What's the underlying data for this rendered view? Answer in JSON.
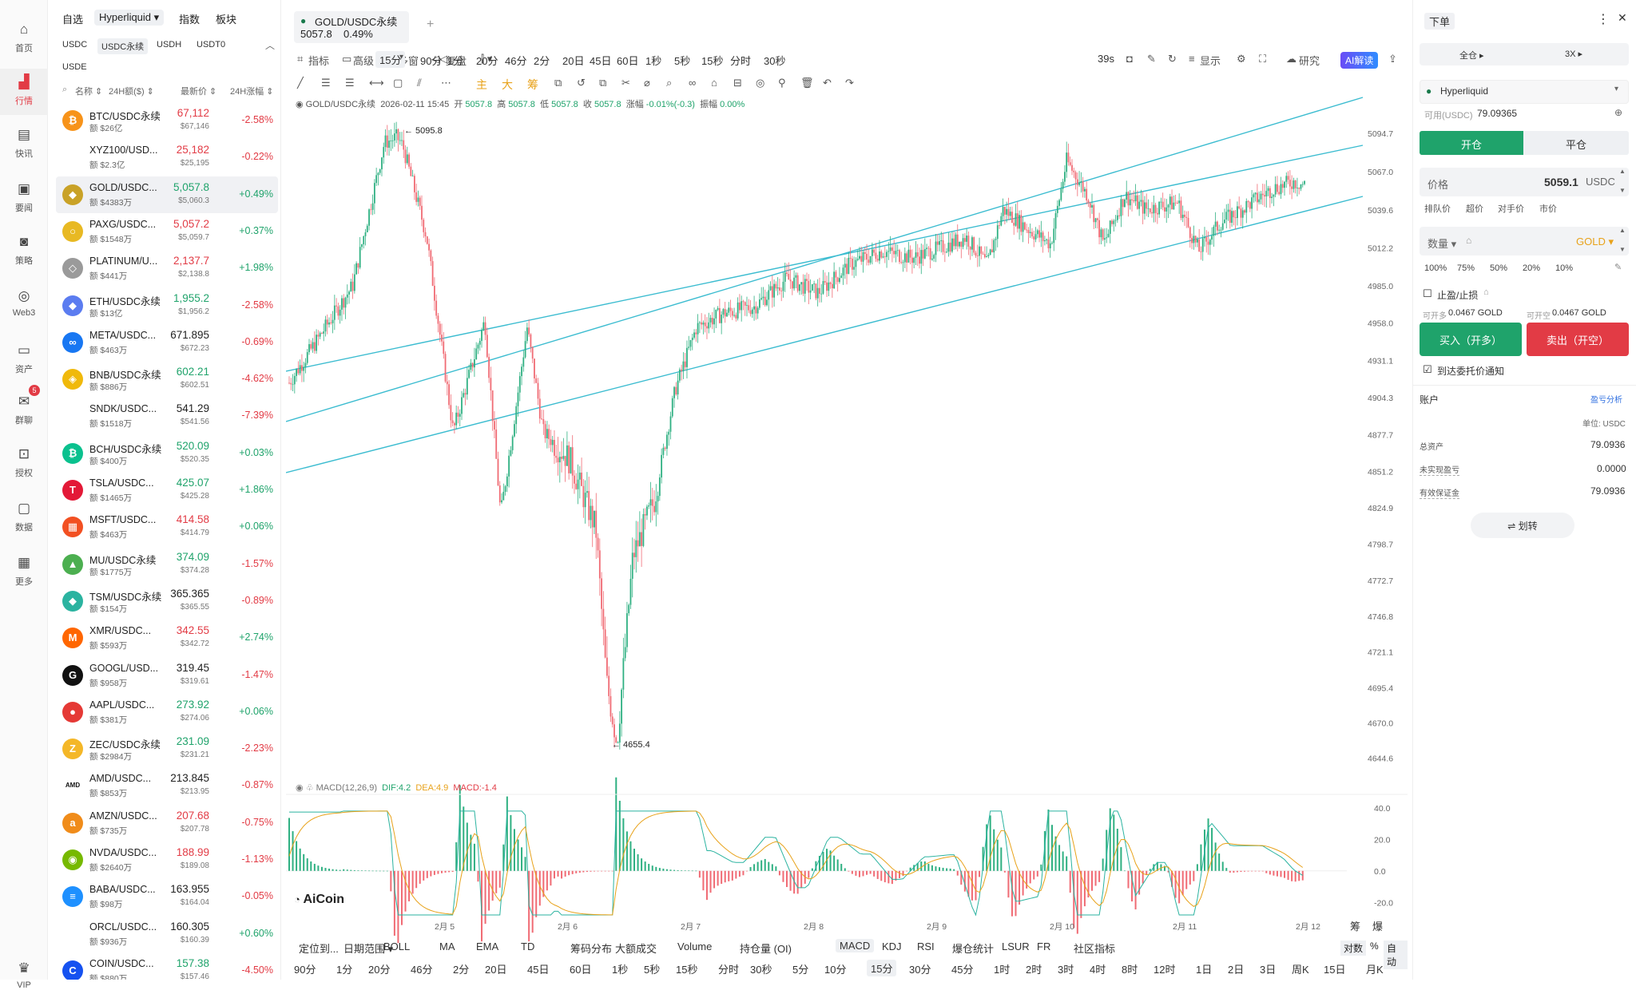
{
  "nav": [
    {
      "label": "首页",
      "icon": "home-icon",
      "glyph": "⌂"
    },
    {
      "label": "行情",
      "icon": "market-chart-icon",
      "glyph": "▟",
      "active": true
    },
    {
      "label": "快讯",
      "icon": "news-flash-icon",
      "glyph": "▤"
    },
    {
      "label": "要闻",
      "icon": "headline-news-icon",
      "glyph": "▣"
    },
    {
      "label": "策略",
      "icon": "robot-strategy-icon",
      "glyph": "◙"
    },
    {
      "label": "Web3",
      "icon": "web3-icon",
      "glyph": "◎"
    },
    {
      "label": "资产",
      "icon": "wallet-icon",
      "glyph": "▭"
    },
    {
      "label": "群聊",
      "icon": "chat-icon",
      "glyph": "✉",
      "badge": "5"
    },
    {
      "label": "授权",
      "icon": "authorize-icon",
      "glyph": "⊡"
    },
    {
      "label": "数据",
      "icon": "data-monitor-icon",
      "glyph": "▢"
    },
    {
      "label": "更多",
      "icon": "more-grid-icon",
      "glyph": "▦"
    },
    {
      "label": "VIP",
      "icon": "vip-crown-icon",
      "glyph": "♛"
    }
  ],
  "market": {
    "tabs": [
      "自选",
      "Hyperliquid ▾",
      "指数",
      "板块"
    ],
    "subtabs": [
      "USDC",
      "USDC永续",
      "USDH",
      "USDT0"
    ],
    "subtabs2": "USDE",
    "headers": {
      "name": "名称 ⇕",
      "vol": "24H额($) ⇕",
      "price": "最新价 ⇕",
      "chg": "24H涨幅 ⇕"
    },
    "rows": [
      {
        "name": "BTC/USDC永续",
        "vol": "额 $26亿",
        "price": "67,112",
        "sub": "$67,146",
        "chg": "-2.58%",
        "dir": "dn",
        "color": "#f7931a",
        "glyph": "₿"
      },
      {
        "name": "XYZ100/USD...",
        "vol": "额 $2.3亿",
        "price": "25,182",
        "sub": "$25,195",
        "chg": "-0.22%",
        "dir": "dn",
        "color": "",
        "glyph": ""
      },
      {
        "name": "GOLD/USDC...",
        "vol": "额 $4383万",
        "price": "5,057.8",
        "sub": "$5,060.3",
        "chg": "+0.49%",
        "dir": "up",
        "color": "#c9a227",
        "glyph": "◆",
        "sel": true
      },
      {
        "name": "PAXG/USDC...",
        "vol": "额 $1548万",
        "price": "5,057.2",
        "sub": "$5,059.7",
        "chg": "+0.37%",
        "dir": "dn",
        "color": "#e8b923",
        "glyph": "○"
      },
      {
        "name": "PLATINUM/U...",
        "vol": "额 $441万",
        "price": "2,137.7",
        "sub": "$2,138.8",
        "chg": "+1.98%",
        "dir": "dn",
        "color": "#9a9a9a",
        "glyph": "◇"
      },
      {
        "name": "ETH/USDC永续",
        "vol": "额 $13亿",
        "price": "1,955.2",
        "sub": "$1,956.2",
        "chg": "-2.58%",
        "dir": "up",
        "color": "#5b7cf0",
        "glyph": "◆"
      },
      {
        "name": "META/USDC...",
        "vol": "额 $463万",
        "price": "671.895",
        "sub": "$672.23",
        "chg": "-0.69%",
        "dir": "blk",
        "color": "#1877f2",
        "glyph": "∞"
      },
      {
        "name": "BNB/USDC永续",
        "vol": "额 $886万",
        "price": "602.21",
        "sub": "$602.51",
        "chg": "-4.62%",
        "dir": "up",
        "color": "#f0b90b",
        "glyph": "◈"
      },
      {
        "name": "SNDK/USDC...",
        "vol": "额 $1518万",
        "price": "541.29",
        "sub": "$541.56",
        "chg": "-7.39%",
        "dir": "blk",
        "color": "",
        "glyph": ""
      },
      {
        "name": "BCH/USDC永续",
        "vol": "额 $400万",
        "price": "520.09",
        "sub": "$520.35",
        "chg": "+0.03%",
        "dir": "up",
        "color": "#0ac18e",
        "glyph": "₿"
      },
      {
        "name": "TSLA/USDC...",
        "vol": "额 $1465万",
        "price": "425.07",
        "sub": "$425.28",
        "chg": "+1.86%",
        "dir": "up",
        "color": "#e31937",
        "glyph": "T"
      },
      {
        "name": "MSFT/USDC...",
        "vol": "额 $463万",
        "price": "414.58",
        "sub": "$414.79",
        "chg": "+0.06%",
        "dir": "dn",
        "color": "#f25022",
        "glyph": "▦"
      },
      {
        "name": "MU/USDC永续",
        "vol": "额 $1775万",
        "price": "374.09",
        "sub": "$374.28",
        "chg": "-1.57%",
        "dir": "up",
        "color": "#4caf50",
        "glyph": "▲"
      },
      {
        "name": "TSM/USDC永续",
        "vol": "额 $154万",
        "price": "365.365",
        "sub": "$365.55",
        "chg": "-0.89%",
        "dir": "blk",
        "color": "#2bb3a0",
        "glyph": "◆"
      },
      {
        "name": "XMR/USDC...",
        "vol": "额 $593万",
        "price": "342.55",
        "sub": "$342.72",
        "chg": "+2.74%",
        "dir": "dn",
        "color": "#ff6600",
        "glyph": "M"
      },
      {
        "name": "GOOGL/USD...",
        "vol": "额 $958万",
        "price": "319.45",
        "sub": "$319.61",
        "chg": "-1.47%",
        "dir": "blk",
        "color": "#111",
        "glyph": "G"
      },
      {
        "name": "AAPL/USDC...",
        "vol": "额 $381万",
        "price": "273.92",
        "sub": "$274.06",
        "chg": "+0.06%",
        "dir": "up",
        "color": "#e53935",
        "glyph": "●"
      },
      {
        "name": "ZEC/USDC永续",
        "vol": "额 $2984万",
        "price": "231.09",
        "sub": "$231.21",
        "chg": "-2.23%",
        "dir": "up",
        "color": "#f4b728",
        "glyph": "Z"
      },
      {
        "name": "AMD/USDC...",
        "vol": "额 $853万",
        "price": "213.845",
        "sub": "$213.95",
        "chg": "-0.87%",
        "dir": "blk",
        "color": "",
        "glyph": "AMD"
      },
      {
        "name": "AMZN/USDC...",
        "vol": "额 $735万",
        "price": "207.68",
        "sub": "$207.78",
        "chg": "-0.75%",
        "dir": "dn",
        "color": "#f08c1a",
        "glyph": "a"
      },
      {
        "name": "NVDA/USDC...",
        "vol": "额 $2640万",
        "price": "188.99",
        "sub": "$189.08",
        "chg": "-1.13%",
        "dir": "dn",
        "color": "#76b900",
        "glyph": "◉"
      },
      {
        "name": "BABA/USDC...",
        "vol": "额 $98万",
        "price": "163.955",
        "sub": "$164.04",
        "chg": "-0.05%",
        "dir": "blk",
        "color": "#1e90ff",
        "glyph": "≡"
      },
      {
        "name": "ORCL/USDC...",
        "vol": "额 $936万",
        "price": "160.305",
        "sub": "$160.39",
        "chg": "+0.60%",
        "dir": "blk",
        "color": "",
        "glyph": ""
      },
      {
        "name": "COIN/USDC...",
        "vol": "额 $880万",
        "price": "157.38",
        "sub": "$157.46",
        "chg": "-4.50%",
        "dir": "up",
        "color": "#1652f0",
        "glyph": "C"
      }
    ]
  },
  "chart": {
    "tab_title": "GOLD/USDC永续",
    "tab_price": "5057.8",
    "tab_chg": "0.49%",
    "add_tab": "+",
    "toolbar": [
      "指标",
      "高级",
      "多窗",
      "复盘"
    ],
    "timeframes": [
      "15分",
      "90分",
      "1分",
      "20分",
      "46分",
      "2分",
      "20日",
      "45日",
      "60日",
      "1秒",
      "5秒",
      "15秒",
      "分时",
      "30秒"
    ],
    "countdown": "39s",
    "right_tools": [
      "显示",
      "研究"
    ],
    "ai_label": "AI解读",
    "mode_labels": [
      "主",
      "大",
      "筹"
    ],
    "ohlc": {
      "pair": "GOLD/USDC永续",
      "date": "2026-02-11 15:45",
      "open_l": "开",
      "open": "5057.8",
      "high_l": "高",
      "high": "5057.8",
      "low_l": "低",
      "low": "5057.8",
      "close_l": "收",
      "close": "5057.8",
      "chg_l": "涨幅",
      "chg": "-0.01%(-0.3)",
      "amp_l": "振幅",
      "amp": "0.00%"
    },
    "high_marker": "← 5095.8",
    "low_marker": "← 4655.4",
    "macd": {
      "label": "MACD(12,26,9)",
      "dif": "DIF:4.2",
      "dea": "DEA:4.9",
      "macd": "MACD:-1.4"
    },
    "logo": "AiCoin",
    "dates": [
      "2月 5",
      "2月 6",
      "2月 7",
      "2月 8",
      "2月 9",
      "2月 10",
      "2月 11",
      "2月 12"
    ],
    "bottom_tabs": [
      "定位到...",
      "日期范围 ▾",
      "BOLL",
      "MA",
      "EMA",
      "TD",
      "筹码分布",
      "大额成交",
      "Volume",
      "持仓量 (OI)",
      "MACD",
      "KDJ",
      "RSI",
      "爆仓统计",
      "LSUR",
      "FR",
      "社区指标"
    ],
    "bottom_right": [
      "对数",
      "%",
      "自动"
    ],
    "bottom_tfs": [
      "90分",
      "1分",
      "20分",
      "46分",
      "2分",
      "20日",
      "45日",
      "60日",
      "1秒",
      "5秒",
      "15秒",
      "分时",
      "30秒",
      "5分",
      "10分",
      "15分",
      "30分",
      "45分",
      "1时",
      "2时",
      "3时",
      "4时",
      "8时",
      "12时",
      "1日",
      "2日",
      "3日",
      "周K",
      "15日",
      "月K"
    ],
    "extra_tabs": [
      "筹",
      "爆"
    ]
  },
  "chart_data": {
    "type": "candlestick",
    "x_range": [
      "2026-02-04",
      "2026-02-12"
    ],
    "y_ticks": [
      5094.7,
      5067.0,
      5039.6,
      5012.2,
      4985.0,
      4958.0,
      4931.1,
      4904.3,
      4877.7,
      4851.2,
      4824.9,
      4798.7,
      4772.7,
      4746.8,
      4721.1,
      4695.4,
      4670.0,
      4644.6
    ],
    "ylim": [
      4630,
      5112
    ],
    "high": 5095.8,
    "low": 4655.4,
    "last": 5057.8,
    "path": [
      [
        0,
        4915
      ],
      [
        0.06,
        4985
      ],
      [
        0.09,
        5088
      ],
      [
        0.105,
        5093
      ],
      [
        0.13,
        5020
      ],
      [
        0.155,
        4880
      ],
      [
        0.185,
        4960
      ],
      [
        0.2,
        4820
      ],
      [
        0.225,
        4955
      ],
      [
        0.24,
        4880
      ],
      [
        0.265,
        4860
      ],
      [
        0.29,
        4810
      ],
      [
        0.3,
        4700
      ],
      [
        0.31,
        4655.4
      ],
      [
        0.325,
        4790
      ],
      [
        0.345,
        4830
      ],
      [
        0.365,
        4910
      ],
      [
        0.385,
        4955
      ],
      [
        0.41,
        4965
      ],
      [
        0.44,
        4970
      ],
      [
        0.47,
        4990
      ],
      [
        0.5,
        4980
      ],
      [
        0.53,
        5000
      ],
      [
        0.56,
        5010
      ],
      [
        0.59,
        5005
      ],
      [
        0.615,
        5012
      ],
      [
        0.64,
        5020
      ],
      [
        0.66,
        5000
      ],
      [
        0.675,
        5040
      ],
      [
        0.7,
        5025
      ],
      [
        0.72,
        5015
      ],
      [
        0.735,
        5075
      ],
      [
        0.755,
        5050
      ],
      [
        0.77,
        5015
      ],
      [
        0.79,
        5050
      ],
      [
        0.81,
        5040
      ],
      [
        0.84,
        5045
      ],
      [
        0.86,
        5010
      ],
      [
        0.88,
        5030
      ],
      [
        0.91,
        5045
      ],
      [
        0.93,
        5055
      ],
      [
        0.95,
        5060
      ],
      [
        0.96,
        5057.8
      ]
    ],
    "macd_ylim": [
      -30,
      45
    ],
    "macd_ticks": [
      40.0,
      20.0,
      0.0,
      -20.0
    ]
  },
  "order": {
    "title": "下单",
    "margin_mode": "全仓 ▸",
    "leverage": "3X ▸",
    "exchange": "Hyperliquid",
    "avail_label": "可用(USDC)",
    "avail_value": "79.09365",
    "open_tab": "开仓",
    "close_tab": "平仓",
    "price_label": "价格",
    "price_value": "5059.1",
    "price_unit": "USDC",
    "price_opts": [
      "排队价",
      "超价",
      "对手价",
      "市价"
    ],
    "qty_label": "数量 ▾",
    "qty_unit": "GOLD ▾",
    "pcts": [
      "100%",
      "75%",
      "50%",
      "20%",
      "10%"
    ],
    "sltp": "止盈/止损",
    "can_long_label": "可开多",
    "can_long": "0.0467 GOLD",
    "can_short_label": "可开空",
    "can_short": "0.0467 GOLD",
    "buy": "买入（开多）",
    "sell": "卖出（开空）",
    "notify": "到达委托价通知",
    "account": "账户",
    "pnl_analysis": "盈亏分析",
    "unit": "单位: USDC",
    "total_label": "总资产",
    "total": "79.0936",
    "upnl_label": "未实现盈亏",
    "upnl": "0.0000",
    "eff_label": "有效保证金",
    "eff": "79.0936",
    "transfer": "⇌ 划转"
  }
}
